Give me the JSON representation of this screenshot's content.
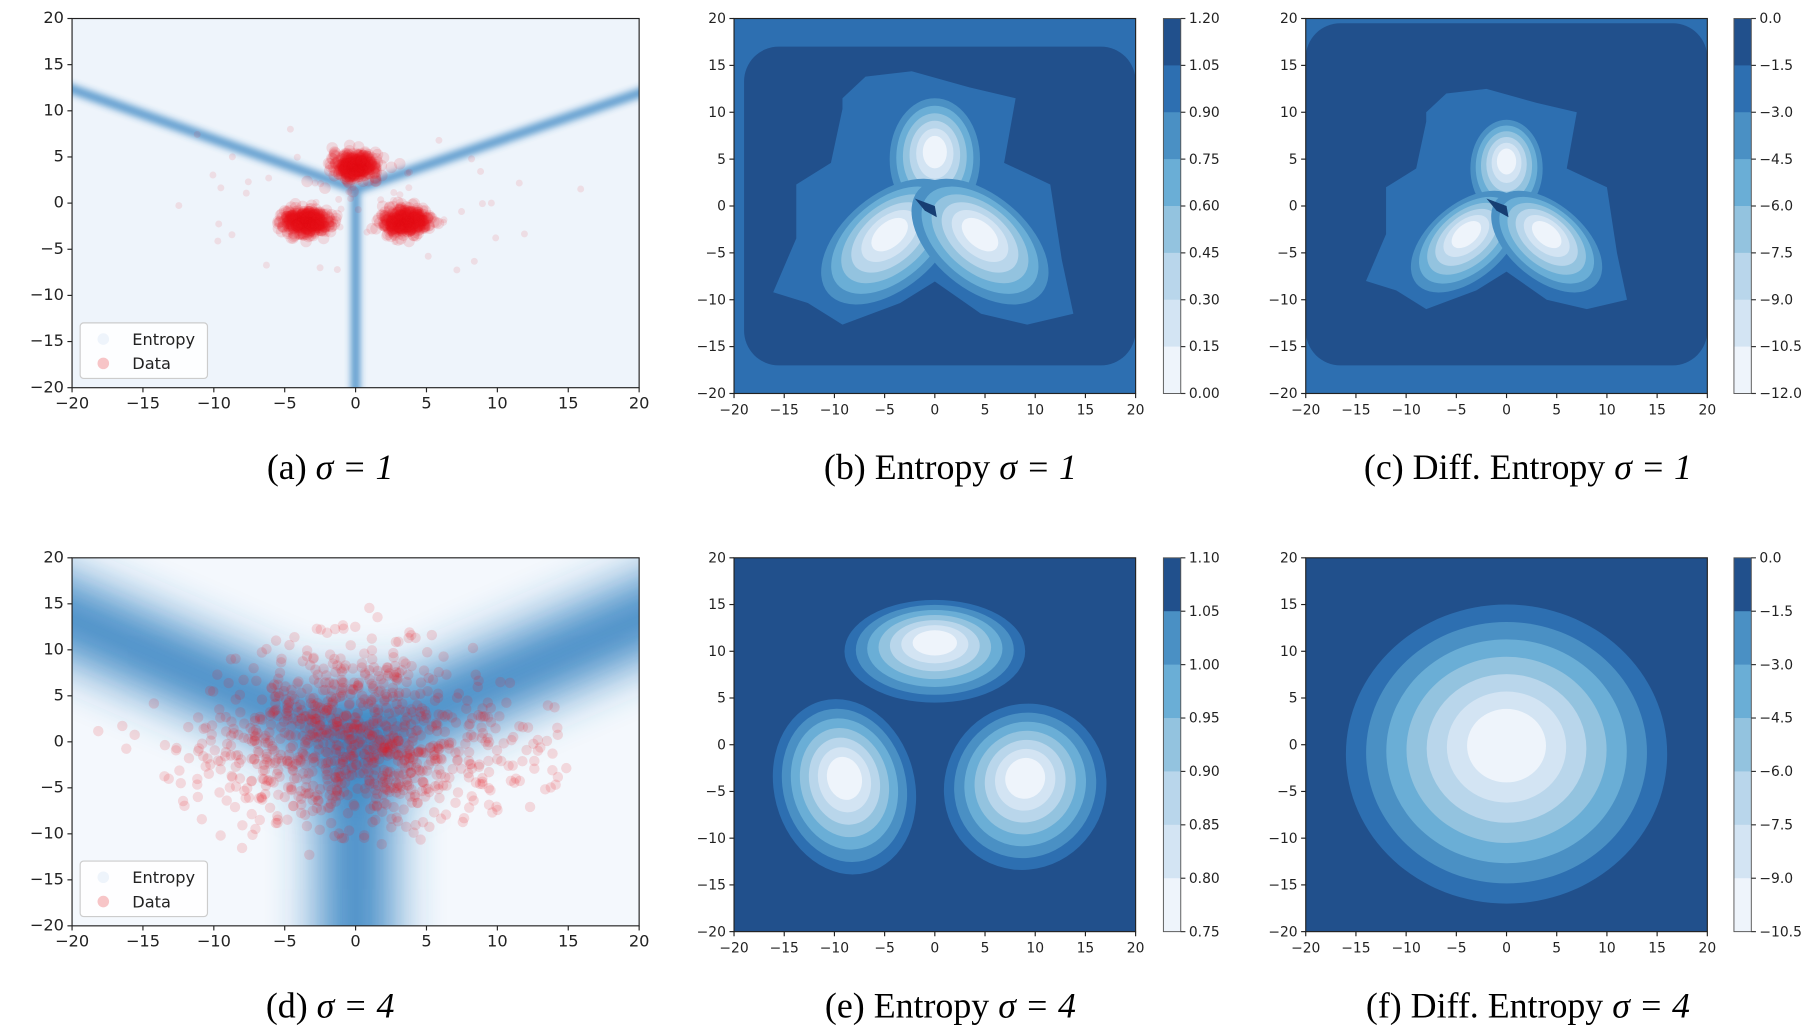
{
  "colors": {
    "levels": [
      "#eef4fb",
      "#d3e4f3",
      "#b9d6eb",
      "#93c3df",
      "#6aaed6",
      "#4a90c4",
      "#2d6fb1",
      "#21508c"
    ],
    "entropy": "#2f7fbf",
    "data": "#e8121a"
  },
  "chart_data": [
    {
      "id": "a",
      "type": "scatter",
      "caption": {
        "prefix": "(a)",
        "math": "σ = 1"
      },
      "xlim": [
        -20,
        20
      ],
      "ylim": [
        -20,
        20
      ],
      "xticks": [
        "−20",
        "−15",
        "−10",
        "−5",
        "0",
        "5",
        "10",
        "15",
        "20"
      ],
      "yticks": [
        "20",
        "15",
        "10",
        "5",
        "0",
        "−5",
        "−10",
        "−15",
        "−20"
      ],
      "legend": {
        "position": "lower-left",
        "entries": [
          "Entropy",
          "Data"
        ]
      },
      "series": [
        {
          "name": "Entropy",
          "shape": "Y-shaped ridges",
          "junction": [
            0,
            1.5
          ],
          "arms_to": [
            [
              -20,
              12.5
            ],
            [
              20,
              12
            ],
            [
              0,
              -20
            ]
          ],
          "width": "narrow"
        },
        {
          "name": "Data",
          "clusters": [
            {
              "center": [
                0,
                4
              ],
              "spread": 1
            },
            {
              "center": [
                -3.5,
                -2
              ],
              "spread": 1
            },
            {
              "center": [
                3.5,
                -2
              ],
              "spread": 1
            }
          ]
        }
      ]
    },
    {
      "id": "b",
      "type": "contour",
      "caption": {
        "prefix": "(b) Entropy",
        "math": "σ = 1"
      },
      "xlim": [
        -20,
        20
      ],
      "ylim": [
        -20,
        20
      ],
      "xticks": [
        "−20",
        "−15",
        "−10",
        "−5",
        "0",
        "5",
        "10",
        "15",
        "20"
      ],
      "yticks": [
        "20",
        "15",
        "10",
        "5",
        "0",
        "−5",
        "−10",
        "−15",
        "−20"
      ],
      "colorbar_ticks": [
        "1.20",
        "1.05",
        "0.90",
        "0.75",
        "0.60",
        "0.45",
        "0.30",
        "0.15",
        "0.00"
      ],
      "minima": [
        {
          "center": [
            0,
            5
          ]
        },
        {
          "center": [
            -4,
            -3.5
          ]
        },
        {
          "center": [
            4,
            -3.5
          ]
        }
      ]
    },
    {
      "id": "c",
      "type": "contour",
      "caption": {
        "prefix": "(c) Diff. Entropy",
        "math": "σ = 1"
      },
      "xlim": [
        -20,
        20
      ],
      "ylim": [
        -20,
        20
      ],
      "xticks": [
        "−20",
        "−15",
        "−10",
        "−5",
        "0",
        "5",
        "10",
        "15",
        "20"
      ],
      "yticks": [
        "20",
        "15",
        "10",
        "5",
        "0",
        "−5",
        "−10",
        "−15",
        "−20"
      ],
      "colorbar_ticks": [
        "0.0",
        "−1.5",
        "−3.0",
        "−4.5",
        "−6.0",
        "−7.5",
        "−9.0",
        "−10.5",
        "−12.0"
      ],
      "minima": [
        {
          "center": [
            0,
            4
          ]
        },
        {
          "center": [
            -3.5,
            -2.5
          ]
        },
        {
          "center": [
            3.5,
            -2.5
          ]
        }
      ]
    },
    {
      "id": "d",
      "type": "scatter",
      "caption": {
        "prefix": "(d)",
        "math": "σ = 4"
      },
      "xlim": [
        -20,
        20
      ],
      "ylim": [
        -20,
        20
      ],
      "xticks": [
        "−20",
        "−15",
        "−10",
        "−5",
        "0",
        "5",
        "10",
        "15",
        "20"
      ],
      "yticks": [
        "20",
        "15",
        "10",
        "5",
        "0",
        "−5",
        "−10",
        "−15",
        "−20"
      ],
      "legend": {
        "position": "lower-left",
        "entries": [
          "Entropy",
          "Data"
        ]
      },
      "series": [
        {
          "name": "Entropy",
          "shape": "Y-shaped ridges",
          "junction": [
            0,
            0
          ],
          "arms_to": [
            [
              -20,
              14
            ],
            [
              20,
              14
            ],
            [
              0,
              -20
            ]
          ],
          "width": "wide"
        },
        {
          "name": "Data",
          "clusters": [
            {
              "center": [
                0,
                4
              ],
              "spread": 4
            },
            {
              "center": [
                -3.5,
                -2
              ],
              "spread": 4
            },
            {
              "center": [
                3.5,
                -2
              ],
              "spread": 4
            }
          ]
        }
      ]
    },
    {
      "id": "e",
      "type": "contour",
      "caption": {
        "prefix": "(e) Entropy",
        "math": "σ = 4"
      },
      "xlim": [
        -20,
        20
      ],
      "ylim": [
        -20,
        20
      ],
      "xticks": [
        "−20",
        "−15",
        "−10",
        "−5",
        "0",
        "5",
        "10",
        "15",
        "20"
      ],
      "yticks": [
        "20",
        "15",
        "10",
        "5",
        "0",
        "−5",
        "−10",
        "−15",
        "−20"
      ],
      "colorbar_ticks": [
        "1.10",
        "1.05",
        "1.00",
        "0.95",
        "0.90",
        "0.85",
        "0.80",
        "0.75"
      ],
      "minima": [
        {
          "center": [
            0,
            10
          ]
        },
        {
          "center": [
            -9,
            -4
          ]
        },
        {
          "center": [
            9,
            -4.5
          ]
        }
      ]
    },
    {
      "id": "f",
      "type": "contour",
      "caption": {
        "prefix": "(f) Diff. Entropy",
        "math": "σ = 4"
      },
      "xlim": [
        -20,
        20
      ],
      "ylim": [
        -20,
        20
      ],
      "xticks": [
        "−20",
        "−15",
        "−10",
        "−5",
        "0",
        "5",
        "10",
        "15",
        "20"
      ],
      "yticks": [
        "20",
        "15",
        "10",
        "5",
        "0",
        "−5",
        "−10",
        "−15",
        "−20"
      ],
      "colorbar_ticks": [
        "0.0",
        "−1.5",
        "−3.0",
        "−4.5",
        "−6.0",
        "−7.5",
        "−9.0",
        "−10.5"
      ],
      "minima": [
        {
          "center": [
            0,
            0
          ]
        }
      ]
    }
  ]
}
